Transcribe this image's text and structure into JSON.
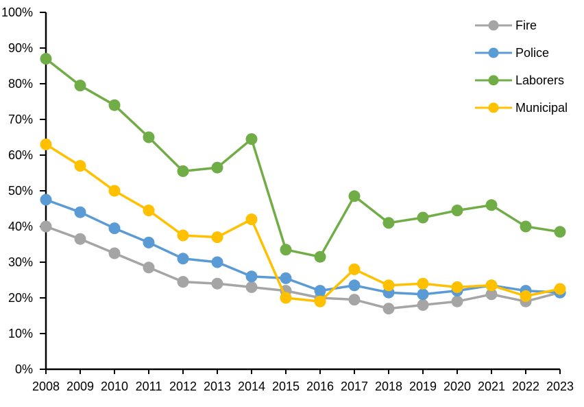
{
  "chart_data": {
    "type": "line",
    "title": "",
    "xlabel": "",
    "ylabel": "",
    "unit": "%",
    "grid": false,
    "legend_position": "top-right",
    "x": [
      2008,
      2009,
      2010,
      2011,
      2012,
      2013,
      2014,
      2015,
      2016,
      2017,
      2018,
      2019,
      2020,
      2021,
      2022,
      2023
    ],
    "y_axis": {
      "min": 0,
      "max": 100,
      "tick_step": 10,
      "tick_labels": [
        "0%",
        "10%",
        "20%",
        "30%",
        "40%",
        "50%",
        "60%",
        "70%",
        "80%",
        "90%",
        "100%"
      ]
    },
    "series": [
      {
        "name": "Fire",
        "color": "#A5A5A5",
        "values": [
          40,
          36.5,
          32.5,
          28.5,
          24.5,
          24,
          23,
          22,
          20,
          19.5,
          17,
          18,
          19,
          21,
          19,
          21.5
        ]
      },
      {
        "name": "Police",
        "color": "#5B9BD5",
        "values": [
          47.5,
          44,
          39.5,
          35.5,
          31,
          30,
          26,
          25.5,
          22,
          23.5,
          21.5,
          21,
          22,
          23.5,
          22,
          21.5
        ]
      },
      {
        "name": "Laborers",
        "color": "#70AD47",
        "values": [
          87,
          79.5,
          74,
          65,
          55.5,
          56.5,
          64.5,
          33.5,
          31.5,
          48.5,
          41,
          42.5,
          44.5,
          46,
          40,
          38.5
        ]
      },
      {
        "name": "Municipal",
        "color": "#FFC000",
        "values": [
          63,
          57,
          50,
          44.5,
          37.5,
          37,
          42,
          20,
          19,
          28,
          23.5,
          24,
          23,
          23.5,
          20.5,
          22.5
        ]
      }
    ]
  },
  "colors": {
    "background": "#FFFFFF",
    "axis": "#000000",
    "text": "#000000"
  }
}
